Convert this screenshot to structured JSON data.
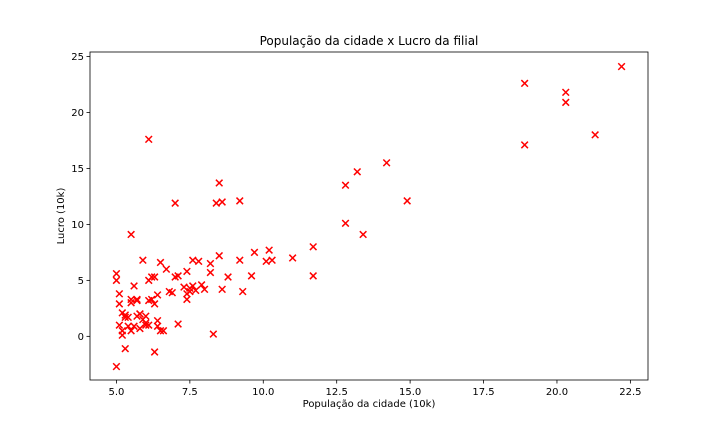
{
  "chart_data": {
    "type": "scatter",
    "title": "População da cidade x Lucro da filial",
    "xlabel": "População da cidade (10k)",
    "ylabel": "Lucro (10k)",
    "xlim": [
      4.1,
      23.1
    ],
    "ylim": [
      -3.9,
      25.4
    ],
    "xticks": [
      5.0,
      7.5,
      10.0,
      12.5,
      15.0,
      17.5,
      20.0,
      22.5
    ],
    "xtick_labels": [
      "5.0",
      "7.5",
      "10.0",
      "12.5",
      "15.0",
      "17.5",
      "20.0",
      "22.5"
    ],
    "yticks": [
      0,
      5,
      10,
      15,
      20,
      25
    ],
    "ytick_labels": [
      "0",
      "5",
      "10",
      "15",
      "20",
      "25"
    ],
    "grid": false,
    "marker": "x",
    "marker_color": "#ff0000",
    "series": [
      {
        "points": [
          [
            6.1,
            17.6
          ],
          [
            5.5,
            9.1
          ],
          [
            8.5,
            13.7
          ],
          [
            7.0,
            11.9
          ],
          [
            5.9,
            6.8
          ],
          [
            8.4,
            11.9
          ],
          [
            7.5,
            4.3
          ],
          [
            8.6,
            12.0
          ],
          [
            6.5,
            6.6
          ],
          [
            5.1,
            3.8
          ],
          [
            5.7,
            3.3
          ],
          [
            14.2,
            15.5
          ],
          [
            5.7,
            3.2
          ],
          [
            5.2,
            2.1
          ],
          [
            8.3,
            0.2
          ],
          [
            6.0,
            1.2
          ],
          [
            6.1,
            1.0
          ],
          [
            5.5,
            0.5
          ],
          [
            5.1,
            2.9
          ],
          [
            6.7,
            6.0
          ],
          [
            7.1,
            5.4
          ],
          [
            7.4,
            5.8
          ],
          [
            7.6,
            4.5
          ],
          [
            6.2,
            3.3
          ],
          [
            8.6,
            4.2
          ],
          [
            5.2,
            0.1
          ],
          [
            6.3,
            2.9
          ],
          [
            5.5,
            3.0
          ],
          [
            5.8,
            0.7
          ],
          [
            9.6,
            5.4
          ],
          [
            5.3,
            -1.1
          ],
          [
            5.0,
            5.0
          ],
          [
            9.3,
            4.0
          ],
          [
            8.8,
            5.3
          ],
          [
            6.3,
            5.3
          ],
          [
            6.1,
            3.2
          ],
          [
            6.4,
            3.7
          ],
          [
            5.0,
            5.6
          ],
          [
            6.2,
            5.3
          ],
          [
            7.6,
            6.8
          ],
          [
            6.1,
            5.0
          ],
          [
            7.4,
            3.8
          ],
          [
            6.9,
            3.9
          ],
          [
            5.6,
            4.5
          ],
          [
            6.0,
            1.8
          ],
          [
            6.4,
            0.9
          ],
          [
            5.8,
            2.0
          ],
          [
            5.1,
            1.0
          ],
          [
            5.6,
            0.9
          ],
          [
            5.3,
            1.9
          ],
          [
            6.4,
            1.4
          ],
          [
            6.5,
            0.5
          ],
          [
            5.4,
            1.7
          ],
          [
            5.2,
            0.5
          ],
          [
            6.6,
            0.5
          ],
          [
            5.5,
            3.3
          ],
          [
            5.3,
            1.7
          ],
          [
            7.3,
            4.4
          ],
          [
            6.3,
            -1.4
          ],
          [
            7.9,
            4.6
          ],
          [
            8.2,
            6.5
          ],
          [
            7.1,
            1.1
          ],
          [
            5.0,
            -2.7
          ],
          [
            7.0,
            5.3
          ],
          [
            7.8,
            6.7
          ],
          [
            8.5,
            7.2
          ],
          [
            8.2,
            5.7
          ],
          [
            9.7,
            7.5
          ],
          [
            10.1,
            6.7
          ],
          [
            10.2,
            7.7
          ],
          [
            10.3,
            6.8
          ],
          [
            11.0,
            7.0
          ],
          [
            9.2,
            6.8
          ],
          [
            11.7,
            8.0
          ],
          [
            11.7,
            5.4
          ],
          [
            12.8,
            13.5
          ],
          [
            12.8,
            10.1
          ],
          [
            13.2,
            14.7
          ],
          [
            13.4,
            9.1
          ],
          [
            14.9,
            12.1
          ],
          [
            18.9,
            22.6
          ],
          [
            18.9,
            17.1
          ],
          [
            20.3,
            21.8
          ],
          [
            20.3,
            20.9
          ],
          [
            21.3,
            18.0
          ],
          [
            22.2,
            24.1
          ],
          [
            9.2,
            12.1
          ],
          [
            7.4,
            3.3
          ],
          [
            7.5,
            4.0
          ],
          [
            7.7,
            4.1
          ],
          [
            6.8,
            4.0
          ],
          [
            8.0,
            4.2
          ],
          [
            5.9,
            1.5
          ],
          [
            5.7,
            1.8
          ],
          [
            6.0,
            1.0
          ],
          [
            5.4,
            0.9
          ],
          [
            5.8,
            2.0
          ]
        ]
      }
    ]
  }
}
